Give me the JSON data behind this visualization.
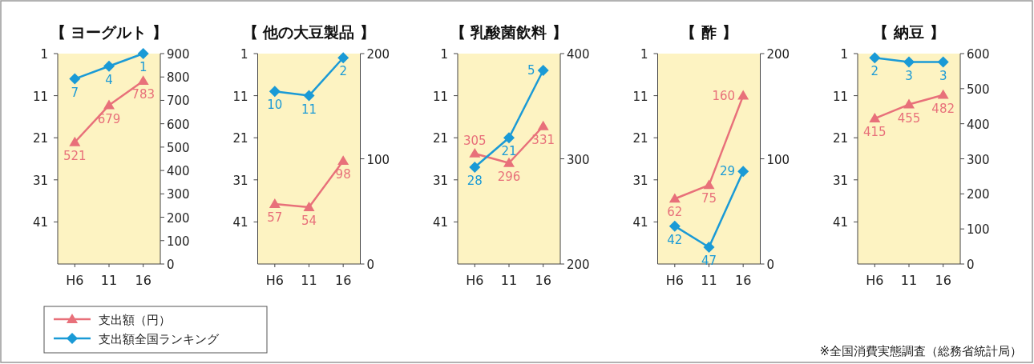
{
  "chart_data": [
    {
      "type": "line",
      "title": "【 ヨーグルト 】",
      "categories": [
        "H6",
        "11",
        "16"
      ],
      "ylim": [
        51,
        1
      ],
      "yticks": [
        1,
        11,
        21,
        31,
        41
      ],
      "y2lim": [
        0,
        900
      ],
      "y2ticks": [
        0,
        100,
        200,
        300,
        400,
        500,
        600,
        700,
        800,
        900
      ],
      "data_labels": true,
      "legend": "bottom",
      "series": [
        {
          "name": "支出額（円）",
          "color": "#e8707a",
          "marker": "triangle",
          "axis": "y2",
          "values": [
            521,
            679,
            783
          ]
        },
        {
          "name": "支出額全国ランキング",
          "color": "#1a9ad6",
          "marker": "diamond",
          "values": [
            7,
            4,
            1
          ]
        }
      ]
    },
    {
      "type": "line",
      "title": "【 他の大豆製品 】",
      "categories": [
        "H6",
        "11",
        "16"
      ],
      "ylim": [
        51,
        1
      ],
      "yticks": [
        1,
        11,
        21,
        31,
        41
      ],
      "y2lim": [
        0,
        200
      ],
      "y2ticks": [
        0,
        100,
        200
      ],
      "data_labels": true,
      "series": [
        {
          "color": "#e8707a",
          "marker": "triangle",
          "axis": "y2",
          "values": [
            57,
            54,
            98
          ]
        },
        {
          "color": "#1a9ad6",
          "marker": "diamond",
          "values": [
            10,
            11,
            2
          ]
        }
      ]
    },
    {
      "type": "line",
      "title": "【 乳酸菌飲料 】",
      "categories": [
        "H6",
        "11",
        "16"
      ],
      "ylim": [
        51,
        1
      ],
      "yticks": [
        1,
        11,
        21,
        31,
        41
      ],
      "y2lim": [
        200,
        400
      ],
      "y2ticks": [
        200,
        300,
        400
      ],
      "data_labels": true,
      "series": [
        {
          "color": "#e8707a",
          "marker": "triangle",
          "axis": "y2",
          "values": [
            305,
            296,
            331
          ]
        },
        {
          "color": "#1a9ad6",
          "marker": "diamond",
          "values": [
            28,
            21,
            5
          ]
        }
      ]
    },
    {
      "type": "line",
      "title": "【 酢 】",
      "categories": [
        "H6",
        "11",
        "16"
      ],
      "ylim": [
        51,
        1
      ],
      "yticks": [
        1,
        11,
        21,
        31,
        41
      ],
      "y2lim": [
        0,
        200
      ],
      "y2ticks": [
        0,
        100,
        200
      ],
      "data_labels": true,
      "series": [
        {
          "color": "#e8707a",
          "marker": "triangle",
          "axis": "y2",
          "values": [
            62,
            75,
            160
          ]
        },
        {
          "color": "#1a9ad6",
          "marker": "diamond",
          "values": [
            42,
            47,
            29
          ]
        }
      ]
    },
    {
      "type": "line",
      "title": "【 納豆 】",
      "categories": [
        "H6",
        "11",
        "16"
      ],
      "ylim": [
        51,
        1
      ],
      "yticks": [
        1,
        11,
        21,
        31,
        41
      ],
      "y2lim": [
        0,
        600
      ],
      "y2ticks": [
        0,
        100,
        200,
        300,
        400,
        500,
        600
      ],
      "data_labels": true,
      "annotations": [
        "※全国消費実態調査（総務省統計局）"
      ],
      "series": [
        {
          "color": "#e8707a",
          "marker": "triangle",
          "axis": "y2",
          "values": [
            415,
            455,
            482
          ]
        },
        {
          "color": "#1a9ad6",
          "marker": "diamond",
          "values": [
            2,
            3,
            3
          ]
        }
      ]
    }
  ]
}
